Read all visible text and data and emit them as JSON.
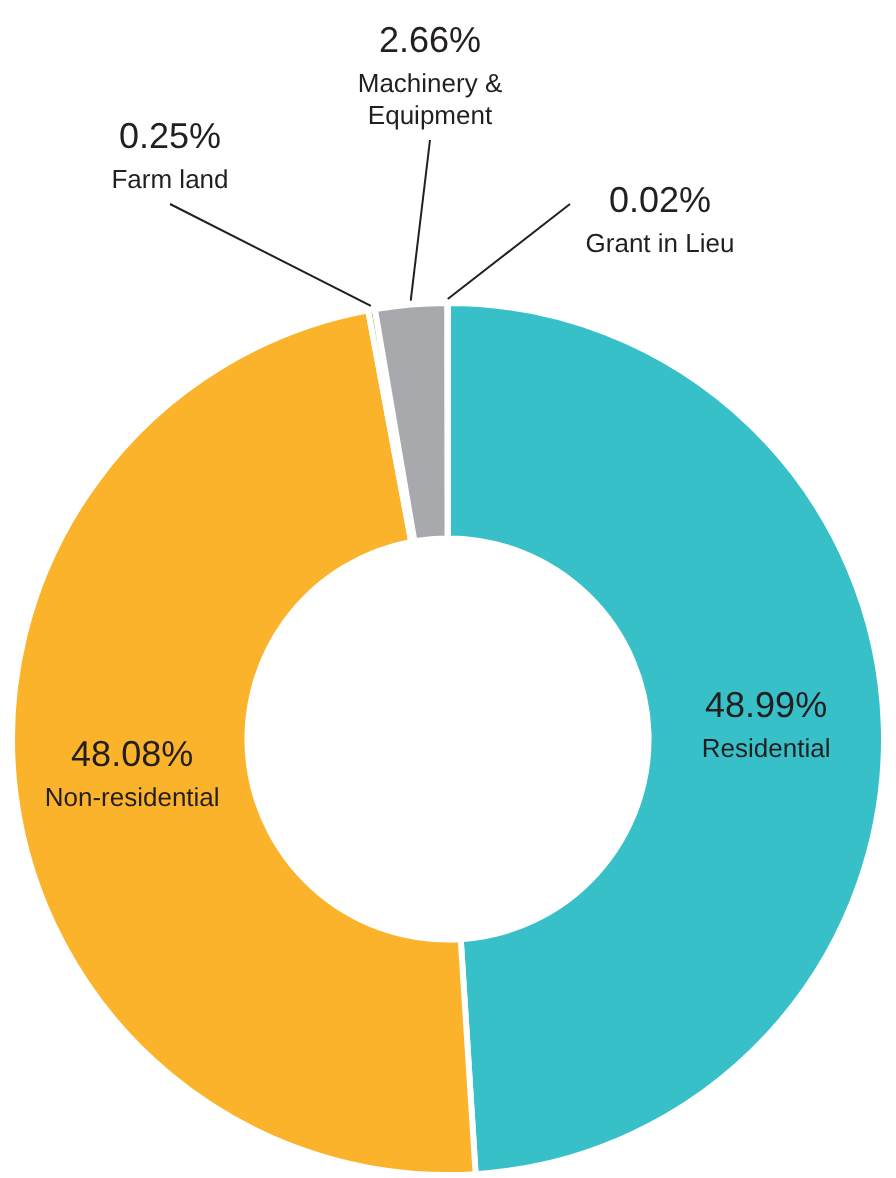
{
  "chart_data": {
    "type": "donut",
    "categories": [
      "Residential",
      "Non-residential",
      "Farm land",
      "Machinery & Equipment",
      "Grant in Lieu"
    ],
    "values": [
      48.99,
      48.08,
      0.25,
      2.66,
      0.02
    ],
    "value_labels": [
      "48.99%",
      "48.08%",
      "0.25%",
      "2.66%",
      "0.02%"
    ],
    "colors": [
      "#38c0c9",
      "#fbb32b",
      "#8dc63f",
      "#a7a9ac",
      "#6d6e71"
    ],
    "legend": false
  }
}
